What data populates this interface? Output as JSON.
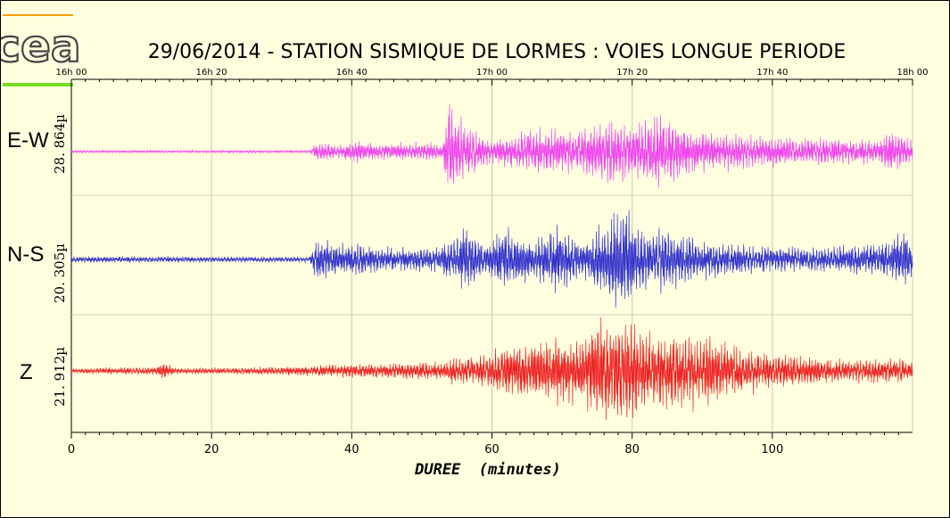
{
  "title": "29/06/2014  -  STATION SISMIQUE DE LORMES : VOIES LONGUE PERIODE",
  "logo": {
    "text": "cea",
    "colors": [
      "#f5a300",
      "#77dd22"
    ]
  },
  "chart_data": {
    "type": "line",
    "xlabel": "DUREE  (minutes)",
    "xlim": [
      0,
      120
    ],
    "x_ticks": [
      0,
      20,
      40,
      60,
      80,
      100
    ],
    "top_ticks": [
      "16h 00",
      "16h 20",
      "16h 40",
      "17h 00",
      "17h 20",
      "17h 40",
      "18h 00"
    ],
    "grid": true,
    "series": [
      {
        "name": "E-W",
        "amplitude": "28. 864µ",
        "color": "#ee44ee",
        "envelope": [
          [
            0,
            0.02
          ],
          [
            34,
            0.02
          ],
          [
            35,
            0.15
          ],
          [
            38,
            0.1
          ],
          [
            40,
            0.18
          ],
          [
            44,
            0.12
          ],
          [
            50,
            0.15
          ],
          [
            53,
            0.12
          ],
          [
            54,
            1.0
          ],
          [
            55,
            0.55
          ],
          [
            57,
            0.35
          ],
          [
            60,
            0.18
          ],
          [
            64,
            0.3
          ],
          [
            68,
            0.38
          ],
          [
            72,
            0.3
          ],
          [
            76,
            0.5
          ],
          [
            80,
            0.45
          ],
          [
            84,
            0.55
          ],
          [
            88,
            0.35
          ],
          [
            92,
            0.3
          ],
          [
            96,
            0.28
          ],
          [
            100,
            0.24
          ],
          [
            104,
            0.2
          ],
          [
            110,
            0.2
          ],
          [
            115,
            0.18
          ],
          [
            117,
            0.3
          ],
          [
            120,
            0.18
          ]
        ]
      },
      {
        "name": "N-S",
        "amplitude": "20. 305µ",
        "color": "#3333cc",
        "envelope": [
          [
            0,
            0.06
          ],
          [
            34,
            0.05
          ],
          [
            35,
            0.4
          ],
          [
            38,
            0.3
          ],
          [
            41,
            0.3
          ],
          [
            46,
            0.2
          ],
          [
            52,
            0.22
          ],
          [
            55,
            0.45
          ],
          [
            56,
            0.6
          ],
          [
            59,
            0.3
          ],
          [
            62,
            0.55
          ],
          [
            66,
            0.3
          ],
          [
            69,
            0.6
          ],
          [
            73,
            0.35
          ],
          [
            76,
            0.65
          ],
          [
            78,
            0.95
          ],
          [
            80,
            0.8
          ],
          [
            82,
            0.5
          ],
          [
            84,
            0.6
          ],
          [
            87,
            0.45
          ],
          [
            90,
            0.35
          ],
          [
            94,
            0.3
          ],
          [
            98,
            0.25
          ],
          [
            104,
            0.22
          ],
          [
            110,
            0.25
          ],
          [
            115,
            0.28
          ],
          [
            119,
            0.5
          ],
          [
            120,
            0.3
          ]
        ]
      },
      {
        "name": "Z",
        "amplitude": "21. 912µ",
        "color": "#ee2222",
        "envelope": [
          [
            0,
            0.05
          ],
          [
            12,
            0.07
          ],
          [
            13,
            0.14
          ],
          [
            15,
            0.05
          ],
          [
            30,
            0.07
          ],
          [
            40,
            0.12
          ],
          [
            53,
            0.15
          ],
          [
            55,
            0.25
          ],
          [
            58,
            0.22
          ],
          [
            62,
            0.45
          ],
          [
            66,
            0.5
          ],
          [
            70,
            0.55
          ],
          [
            73,
            0.55
          ],
          [
            76,
            0.9
          ],
          [
            78,
            1.0
          ],
          [
            80,
            0.85
          ],
          [
            83,
            0.6
          ],
          [
            86,
            0.75
          ],
          [
            88,
            0.65
          ],
          [
            92,
            0.55
          ],
          [
            96,
            0.4
          ],
          [
            100,
            0.28
          ],
          [
            106,
            0.22
          ],
          [
            112,
            0.2
          ],
          [
            118,
            0.2
          ],
          [
            120,
            0.18
          ]
        ]
      }
    ]
  }
}
